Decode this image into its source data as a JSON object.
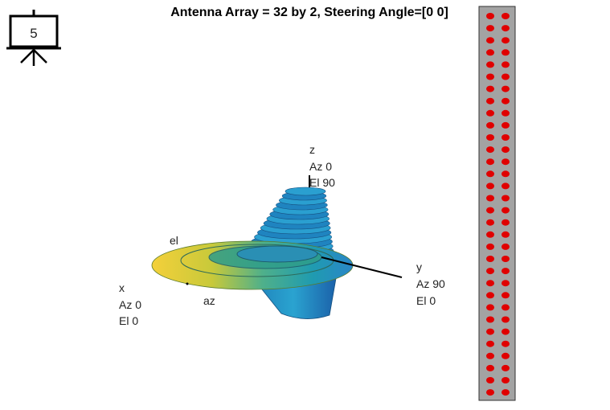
{
  "slide_number": "5",
  "title": "Antenna Array = 32 by 2, Steering Angle=[0 0]",
  "axes": {
    "z": [
      "z",
      "Az 0",
      "El 90"
    ],
    "y": [
      "y",
      "Az 90",
      "El 0"
    ],
    "x": [
      "x",
      "Az 0",
      "El 0"
    ]
  },
  "labels": {
    "el": "el",
    "az": "az"
  }
}
